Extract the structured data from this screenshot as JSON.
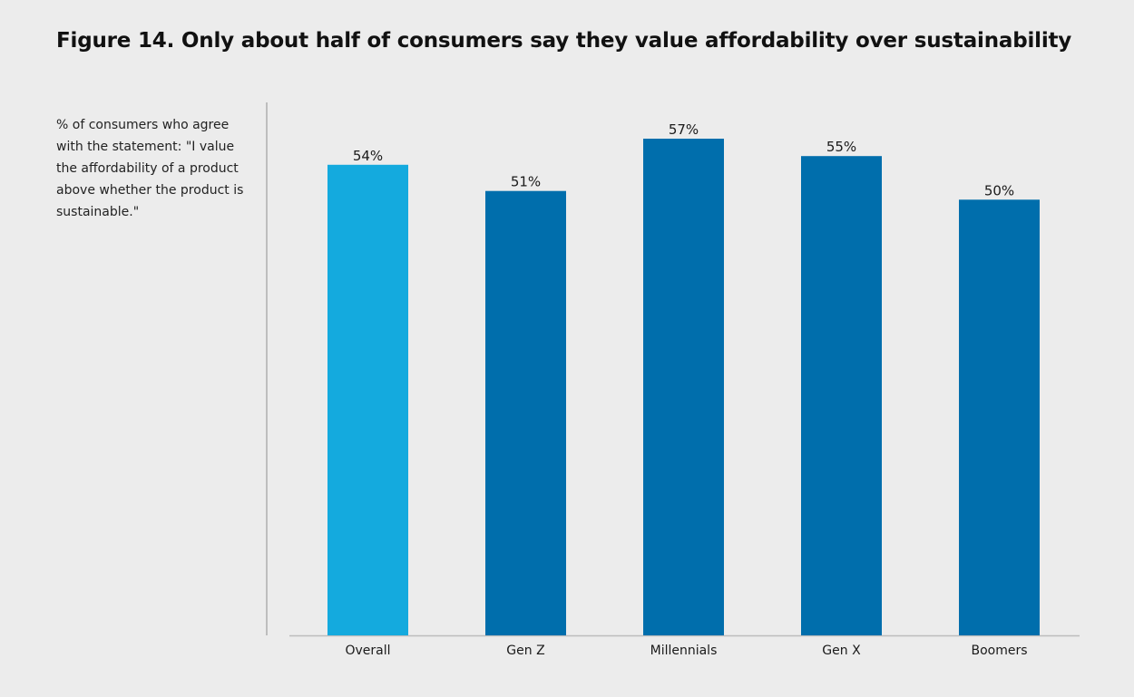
{
  "title": "Figure 14. Only about half of consumers say they value affordability over sustainability",
  "side_note": "% of consumers who agree with the statement: \"I value the affordability of a product above whether the product is sustainable.\"",
  "colors": {
    "background": "#ececec",
    "highlight_bar": "#14aade",
    "bar": "#006eac",
    "axis": "#bdbdbd"
  },
  "chart_data": {
    "type": "bar",
    "title": "Figure 14. Only about half of consumers say they value affordability over sustainability",
    "categories": [
      "Overall",
      "Gen Z",
      "Millennials",
      "Gen X",
      "Boomers"
    ],
    "values": [
      54,
      51,
      57,
      55,
      50
    ],
    "value_labels": [
      "54%",
      "51%",
      "57%",
      "55%",
      "50%"
    ],
    "highlighted_category": "Overall",
    "unit": "%",
    "ylim": [
      0,
      57
    ],
    "grid": false,
    "legend": "none"
  }
}
